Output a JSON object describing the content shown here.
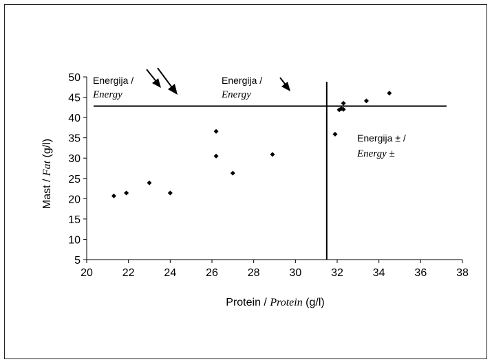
{
  "chart_data": {
    "type": "scatter",
    "title": "",
    "xlabel_prefix": "Protein / ",
    "xlabel_italic": "Protein",
    "xlabel_suffix": " (g/l)",
    "ylabel_prefix": "Mast / ",
    "ylabel_italic": "Fat",
    "ylabel_suffix": " (g/l)",
    "xlim": [
      20,
      38
    ],
    "ylim": [
      5,
      50
    ],
    "xticks": [
      20,
      22,
      24,
      26,
      28,
      30,
      32,
      34,
      36,
      38
    ],
    "yticks": [
      5,
      10,
      15,
      20,
      25,
      30,
      35,
      40,
      45,
      50
    ],
    "grid": false,
    "series": [
      {
        "x": [
          21.3,
          21.9,
          23.0,
          24.0,
          26.2,
          26.2,
          27.0,
          28.9,
          31.9,
          32.1,
          32.2,
          32.3,
          32.3,
          33.4,
          34.5
        ],
        "y": [
          20.7,
          21.4,
          23.9,
          21.4,
          36.6,
          30.5,
          26.3,
          30.9,
          35.9,
          41.9,
          42.2,
          43.5,
          42.0,
          44.1,
          46.0
        ]
      }
    ],
    "reference_lines": {
      "horizontal_y": 42.8,
      "vertical_x": 31.5
    },
    "annotations": [
      {
        "line1": "Energija /",
        "line2": "Energy",
        "arrows": "two-down-right"
      },
      {
        "line1": "Energija /",
        "line2": "Energy",
        "arrows": "one-down-right"
      },
      {
        "line1": "Energija ± /",
        "line2": "Energy ±",
        "arrows": "none"
      }
    ],
    "colors": {
      "points": "#000000",
      "lines": "#000000"
    }
  }
}
